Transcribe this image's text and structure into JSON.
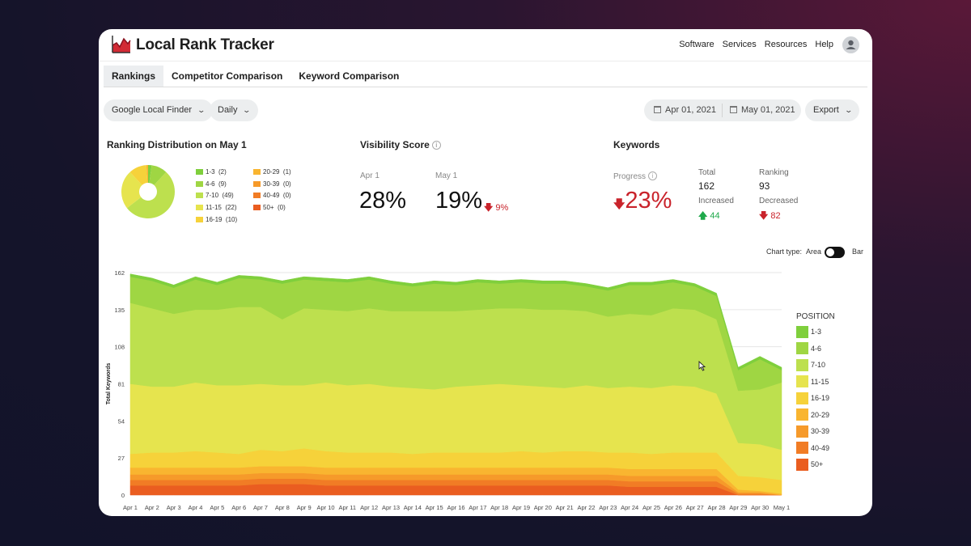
{
  "app": {
    "title": "Local Rank Tracker"
  },
  "nav": {
    "items": [
      "Software",
      "Services",
      "Resources",
      "Help"
    ]
  },
  "tabs": [
    "Rankings",
    "Competitor Comparison",
    "Keyword Comparison"
  ],
  "filters": {
    "source": "Google Local Finder",
    "interval": "Daily",
    "date_from": "Apr 01, 2021",
    "date_to": "May 01, 2021",
    "export": "Export"
  },
  "distribution": {
    "title": "Ranking Distribution on May 1",
    "items": [
      {
        "label": "1-3",
        "count": "(2)",
        "color": "#7fcf3c"
      },
      {
        "label": "4-6",
        "count": "(9)",
        "color": "#9fd643"
      },
      {
        "label": "7-10",
        "count": "(49)",
        "color": "#bde04e"
      },
      {
        "label": "11-15",
        "count": "(22)",
        "color": "#e6e44e"
      },
      {
        "label": "16-19",
        "count": "(10)",
        "color": "#f6d23a"
      },
      {
        "label": "20-29",
        "count": "(1)",
        "color": "#f9b530"
      },
      {
        "label": "30-39",
        "count": "(0)",
        "color": "#f69a2a"
      },
      {
        "label": "40-49",
        "count": "(0)",
        "color": "#f17c25"
      },
      {
        "label": "50+",
        "count": "(0)",
        "color": "#ea5d20"
      }
    ]
  },
  "visibility": {
    "title": "Visibility Score",
    "apr_label": "Apr 1",
    "apr_value": "28%",
    "may_label": "May 1",
    "may_value": "19%",
    "change": "9%"
  },
  "keywords": {
    "title": "Keywords",
    "progress_label": "Progress",
    "progress_value": "23%",
    "total_label": "Total",
    "total_value": "162",
    "ranking_label": "Ranking",
    "ranking_value": "93",
    "increased_label": "Increased",
    "increased_value": "44",
    "decreased_label": "Decreased",
    "decreased_value": "82"
  },
  "chart_controls": {
    "label": "Chart type:",
    "area": "Area",
    "bar": "Bar"
  },
  "colors": {
    "up": "#1fa94b",
    "down": "#c9232b"
  },
  "chart_data": {
    "type": "area",
    "stacked": true,
    "ylabel": "Total Keywords",
    "legend_title": "POSITION",
    "ylim": [
      0,
      162
    ],
    "yticks": [
      0,
      27,
      54,
      81,
      108,
      135,
      162
    ],
    "categories": [
      "Apr 1",
      "Apr 2",
      "Apr 3",
      "Apr 4",
      "Apr 5",
      "Apr 6",
      "Apr 7",
      "Apr 8",
      "Apr 9",
      "Apr 10",
      "Apr 11",
      "Apr 12",
      "Apr 13",
      "Apr 14",
      "Apr 15",
      "Apr 16",
      "Apr 17",
      "Apr 18",
      "Apr 19",
      "Apr 20",
      "Apr 21",
      "Apr 22",
      "Apr 23",
      "Apr 24",
      "Apr 25",
      "Apr 26",
      "Apr 27",
      "Apr 28",
      "Apr 29",
      "Apr 30",
      "May 1"
    ],
    "series": [
      {
        "name": "50+",
        "color": "#ea5d20",
        "values": [
          7,
          7,
          7,
          7,
          7,
          7,
          8,
          8,
          8,
          7,
          7,
          7,
          7,
          7,
          7,
          7,
          7,
          7,
          7,
          7,
          7,
          7,
          7,
          6,
          6,
          6,
          6,
          6,
          0,
          0,
          0
        ]
      },
      {
        "name": "40-49",
        "color": "#f17c25",
        "values": [
          4,
          4,
          4,
          4,
          4,
          4,
          4,
          4,
          4,
          4,
          4,
          4,
          4,
          4,
          4,
          4,
          4,
          4,
          4,
          4,
          4,
          4,
          4,
          4,
          4,
          4,
          4,
          4,
          1,
          1,
          0
        ]
      },
      {
        "name": "30-39",
        "color": "#f69a2a",
        "values": [
          4,
          4,
          4,
          4,
          4,
          4,
          4,
          4,
          4,
          4,
          4,
          4,
          4,
          4,
          4,
          4,
          4,
          4,
          4,
          4,
          4,
          4,
          4,
          4,
          4,
          4,
          4,
          4,
          1,
          1,
          0
        ]
      },
      {
        "name": "20-29",
        "color": "#f9b530",
        "values": [
          5,
          5,
          5,
          5,
          5,
          5,
          5,
          5,
          5,
          5,
          5,
          5,
          5,
          5,
          5,
          5,
          5,
          5,
          5,
          5,
          5,
          5,
          5,
          5,
          5,
          5,
          5,
          5,
          2,
          1,
          1
        ]
      },
      {
        "name": "16-19",
        "color": "#f6d23a",
        "values": [
          10,
          11,
          11,
          12,
          11,
          10,
          12,
          11,
          13,
          12,
          11,
          11,
          11,
          10,
          11,
          11,
          11,
          11,
          12,
          11,
          12,
          12,
          11,
          12,
          11,
          12,
          12,
          12,
          10,
          10,
          10
        ]
      },
      {
        "name": "11-15",
        "color": "#e6e44e",
        "values": [
          51,
          48,
          48,
          50,
          49,
          50,
          48,
          48,
          46,
          50,
          49,
          50,
          48,
          48,
          46,
          48,
          49,
          50,
          48,
          48,
          46,
          48,
          47,
          48,
          48,
          49,
          48,
          43,
          24,
          24,
          22
        ]
      },
      {
        "name": "7-10",
        "color": "#bde04e",
        "values": [
          59,
          57,
          53,
          53,
          55,
          57,
          56,
          48,
          56,
          53,
          54,
          55,
          55,
          56,
          57,
          55,
          55,
          55,
          56,
          56,
          57,
          54,
          52,
          53,
          53,
          56,
          56,
          54,
          38,
          40,
          49
        ]
      },
      {
        "name": "4-6",
        "color": "#9fd643",
        "values": [
          19,
          20,
          19,
          22,
          18,
          21,
          20,
          26,
          21,
          21,
          21,
          21,
          20,
          18,
          20,
          19,
          20,
          18,
          19,
          19,
          19,
          18,
          19,
          21,
          22,
          19,
          17,
          17,
          15,
          22,
          9
        ]
      },
      {
        "name": "1-3",
        "color": "#7fcf3c",
        "values": [
          2,
          2,
          2,
          2,
          2,
          2,
          2,
          2,
          2,
          2,
          2,
          2,
          2,
          2,
          2,
          2,
          2,
          2,
          2,
          2,
          2,
          2,
          2,
          2,
          2,
          2,
          2,
          2,
          2,
          2,
          2
        ]
      }
    ]
  }
}
